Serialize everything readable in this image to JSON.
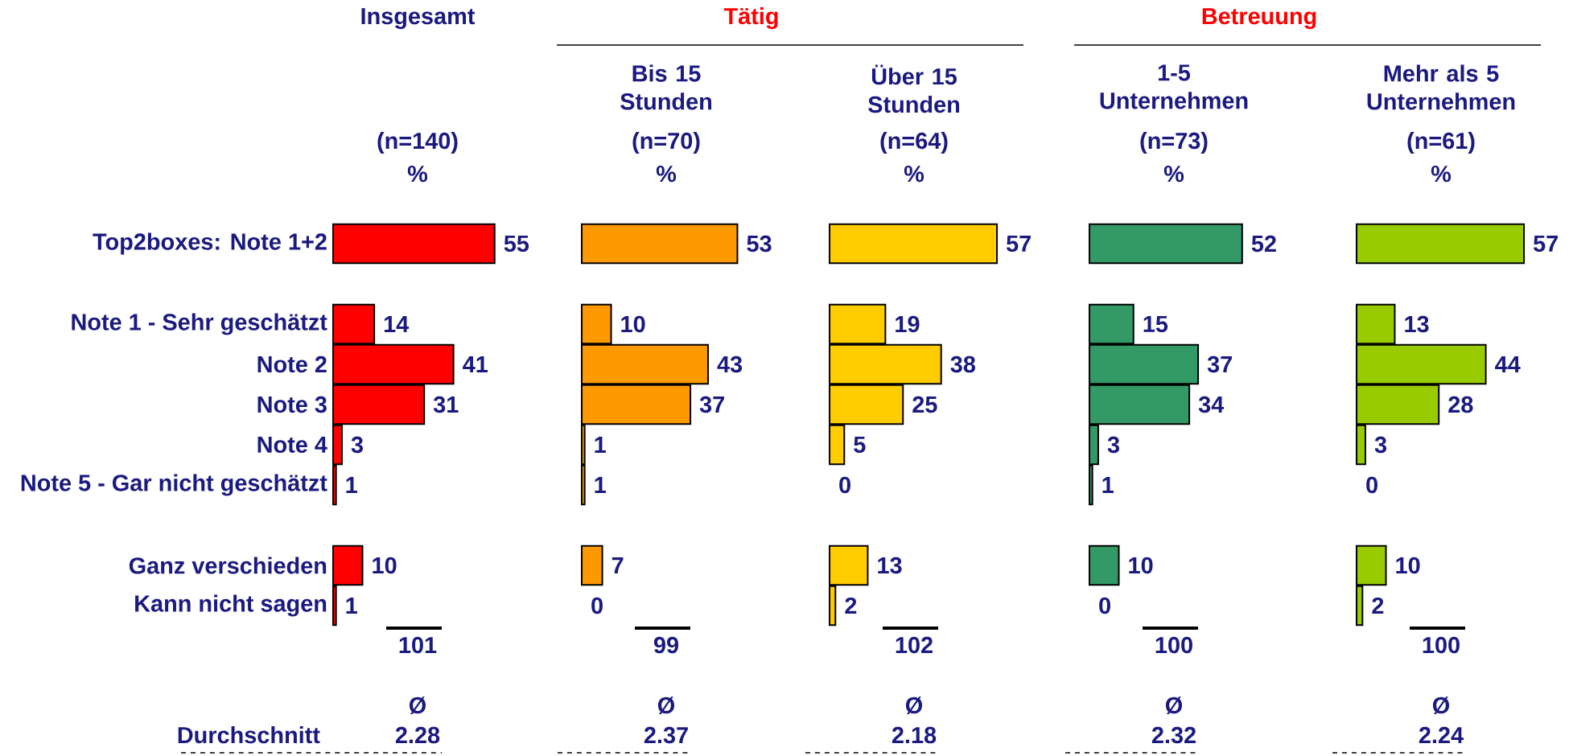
{
  "chart_data": [
    {
      "type": "bar",
      "orientation": "horizontal",
      "title": "Insgesamt",
      "categories": [
        "Top2boxes: Note 1+2",
        null,
        "Note 1 - Sehr geschätzt",
        "Note 2",
        "Note 3",
        "Note 4",
        "Note 5 - Gar nicht geschätzt",
        null,
        "Ganz verschieden",
        "Kann nicht sagen"
      ],
      "values": [
        55,
        null,
        14,
        41,
        31,
        3,
        1,
        null,
        10,
        1
      ],
      "color": "#ff0000",
      "data_labels": true,
      "tick_labels": "y",
      "annotations": [
        "(n=140)",
        "%",
        "101",
        "Ø",
        "2.28",
        "Durchschnitt"
      ]
    },
    {
      "type": "bar",
      "orientation": "horizontal",
      "title": "Tätig",
      "subtitle": "Bis 15 Stunden",
      "categories": [
        null,
        null,
        null,
        null,
        null,
        null,
        null,
        null,
        null,
        null
      ],
      "values": [
        53,
        null,
        10,
        43,
        37,
        1,
        1,
        null,
        7,
        0
      ],
      "color": "#ff9900",
      "data_labels": true,
      "tick_labels": false,
      "annotations": [
        "(n=70)",
        "%",
        "99",
        "Ø",
        "2.37"
      ]
    },
    {
      "type": "bar",
      "orientation": "horizontal",
      "subtitle": "Über 15 Stunden",
      "categories": [
        null,
        null,
        null,
        null,
        null,
        null,
        null,
        null,
        null,
        null
      ],
      "values": [
        57,
        null,
        19,
        38,
        25,
        5,
        0,
        null,
        13,
        2
      ],
      "color": "#ffcc00",
      "data_labels": true,
      "tick_labels": false,
      "annotations": [
        "(n=64)",
        "%",
        "102",
        "Ø",
        "2.18"
      ]
    },
    {
      "type": "bar",
      "orientation": "horizontal",
      "title": "Betreuung",
      "subtitle": "1-5 Unternehmen",
      "categories": [
        null,
        null,
        null,
        null,
        null,
        null,
        null,
        null,
        null,
        null
      ],
      "values": [
        52,
        null,
        15,
        37,
        34,
        3,
        1,
        null,
        10,
        0
      ],
      "color": "#339966",
      "data_labels": true,
      "tick_labels": false,
      "annotations": [
        "(n=73)",
        "%",
        "100",
        "Ø",
        "2.32"
      ]
    },
    {
      "type": "bar",
      "orientation": "horizontal",
      "subtitle": "Mehr als 5 Unternehmen",
      "categories": [
        null,
        null,
        null,
        null,
        null,
        null,
        null,
        null,
        null,
        null
      ],
      "values": [
        57,
        null,
        13,
        44,
        28,
        3,
        0,
        null,
        10,
        2
      ],
      "color": "#99cc00",
      "data_labels": true,
      "tick_labels": false,
      "annotations": [
        "(n=61)",
        "%",
        "100",
        "Ø",
        "2.24"
      ]
    }
  ]
}
